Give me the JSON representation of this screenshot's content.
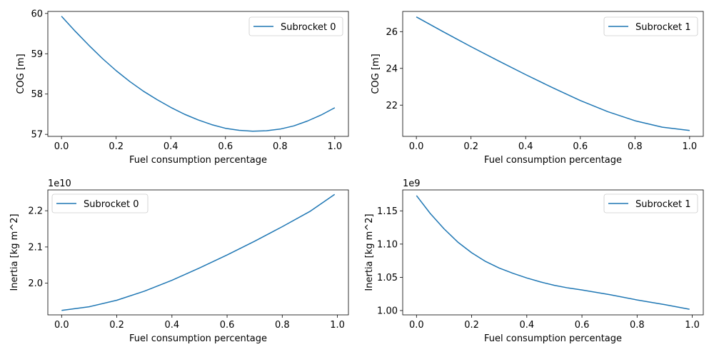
{
  "chart_data": [
    {
      "type": "line",
      "xlabel": "Fuel consumption percentage",
      "ylabel": "COG [m]",
      "offset_text": "",
      "xlim": [
        -0.05,
        1.05
      ],
      "ylim": [
        56.95,
        60.05
      ],
      "xticks": [
        0.0,
        0.2,
        0.4,
        0.6,
        0.8,
        1.0
      ],
      "xtick_labels": [
        "0.0",
        "0.2",
        "0.4",
        "0.6",
        "0.8",
        "1.0"
      ],
      "yticks": [
        57,
        58,
        59,
        60
      ],
      "ytick_labels": [
        "57",
        "58",
        "59",
        "60"
      ],
      "legend_position": "upper-right",
      "series": [
        {
          "name": "Subrocket 0",
          "color": "#1f77b4",
          "x": [
            0.0,
            0.05,
            0.1,
            0.15,
            0.2,
            0.25,
            0.3,
            0.35,
            0.4,
            0.45,
            0.5,
            0.55,
            0.6,
            0.65,
            0.7,
            0.75,
            0.8,
            0.85,
            0.9,
            0.95,
            1.0
          ],
          "y": [
            59.93,
            59.56,
            59.21,
            58.88,
            58.58,
            58.31,
            58.07,
            57.86,
            57.67,
            57.5,
            57.36,
            57.24,
            57.15,
            57.1,
            57.08,
            57.09,
            57.13,
            57.21,
            57.33,
            57.48,
            57.66
          ]
        }
      ]
    },
    {
      "type": "line",
      "xlabel": "Fuel consumption percentage",
      "ylabel": "COG [m]",
      "offset_text": "",
      "xlim": [
        -0.05,
        1.05
      ],
      "ylim": [
        20.3,
        27.1
      ],
      "xticks": [
        0.0,
        0.2,
        0.4,
        0.6,
        0.8,
        1.0
      ],
      "xtick_labels": [
        "0.0",
        "0.2",
        "0.4",
        "0.6",
        "0.8",
        "1.0"
      ],
      "yticks": [
        22,
        24,
        26
      ],
      "ytick_labels": [
        "22",
        "24",
        "26"
      ],
      "legend_position": "upper-right",
      "series": [
        {
          "name": "Subrocket 1",
          "color": "#1f77b4",
          "x": [
            0.0,
            0.1,
            0.2,
            0.3,
            0.4,
            0.5,
            0.6,
            0.7,
            0.8,
            0.9,
            1.0
          ],
          "y": [
            26.8,
            25.98,
            25.18,
            24.41,
            23.66,
            22.94,
            22.25,
            21.65,
            21.15,
            20.8,
            20.62
          ]
        }
      ]
    },
    {
      "type": "line",
      "xlabel": "Fuel consumption percentage",
      "ylabel": "Inertia [kg m^2]",
      "offset_text": "1e10",
      "xlim": [
        -0.05,
        1.04
      ],
      "ylim": [
        1.9125,
        2.2575
      ],
      "xticks": [
        0.0,
        0.2,
        0.4,
        0.6,
        0.8,
        1.0
      ],
      "xtick_labels": [
        "0.0",
        "0.2",
        "0.4",
        "0.6",
        "0.8",
        "1.0"
      ],
      "yticks": [
        2.0,
        2.1,
        2.2
      ],
      "ytick_labels": [
        "2.0",
        "2.1",
        "2.2"
      ],
      "legend_position": "upper-left",
      "series": [
        {
          "name": "Subrocket 0",
          "color": "#1f77b4",
          "x": [
            0.0,
            0.1,
            0.2,
            0.3,
            0.4,
            0.5,
            0.6,
            0.7,
            0.8,
            0.9,
            0.99
          ],
          "y": [
            1.925,
            1.935,
            1.953,
            1.978,
            2.008,
            2.042,
            2.078,
            2.116,
            2.156,
            2.198,
            2.245
          ]
        }
      ]
    },
    {
      "type": "line",
      "xlabel": "Fuel consumption percentage",
      "ylabel": "Inertia [kg m^2]",
      "offset_text": "1e9",
      "xlim": [
        -0.05,
        1.04
      ],
      "ylim": [
        0.9935,
        1.1815
      ],
      "xticks": [
        0.0,
        0.2,
        0.4,
        0.6,
        0.8,
        1.0
      ],
      "xtick_labels": [
        "0.0",
        "0.2",
        "0.4",
        "0.6",
        "0.8",
        "1.0"
      ],
      "yticks": [
        1.0,
        1.05,
        1.1,
        1.15
      ],
      "ytick_labels": [
        "1.00",
        "1.05",
        "1.10",
        "1.15"
      ],
      "legend_position": "upper-right",
      "series": [
        {
          "name": "Subrocket 1",
          "color": "#1f77b4",
          "x": [
            0.0,
            0.05,
            0.1,
            0.15,
            0.2,
            0.25,
            0.3,
            0.35,
            0.4,
            0.45,
            0.5,
            0.55,
            0.6,
            0.7,
            0.8,
            0.9,
            0.99
          ],
          "y": [
            1.173,
            1.146,
            1.123,
            1.103,
            1.087,
            1.074,
            1.064,
            1.056,
            1.049,
            1.043,
            1.038,
            1.034,
            1.031,
            1.024,
            1.016,
            1.009,
            1.002
          ]
        }
      ]
    }
  ]
}
